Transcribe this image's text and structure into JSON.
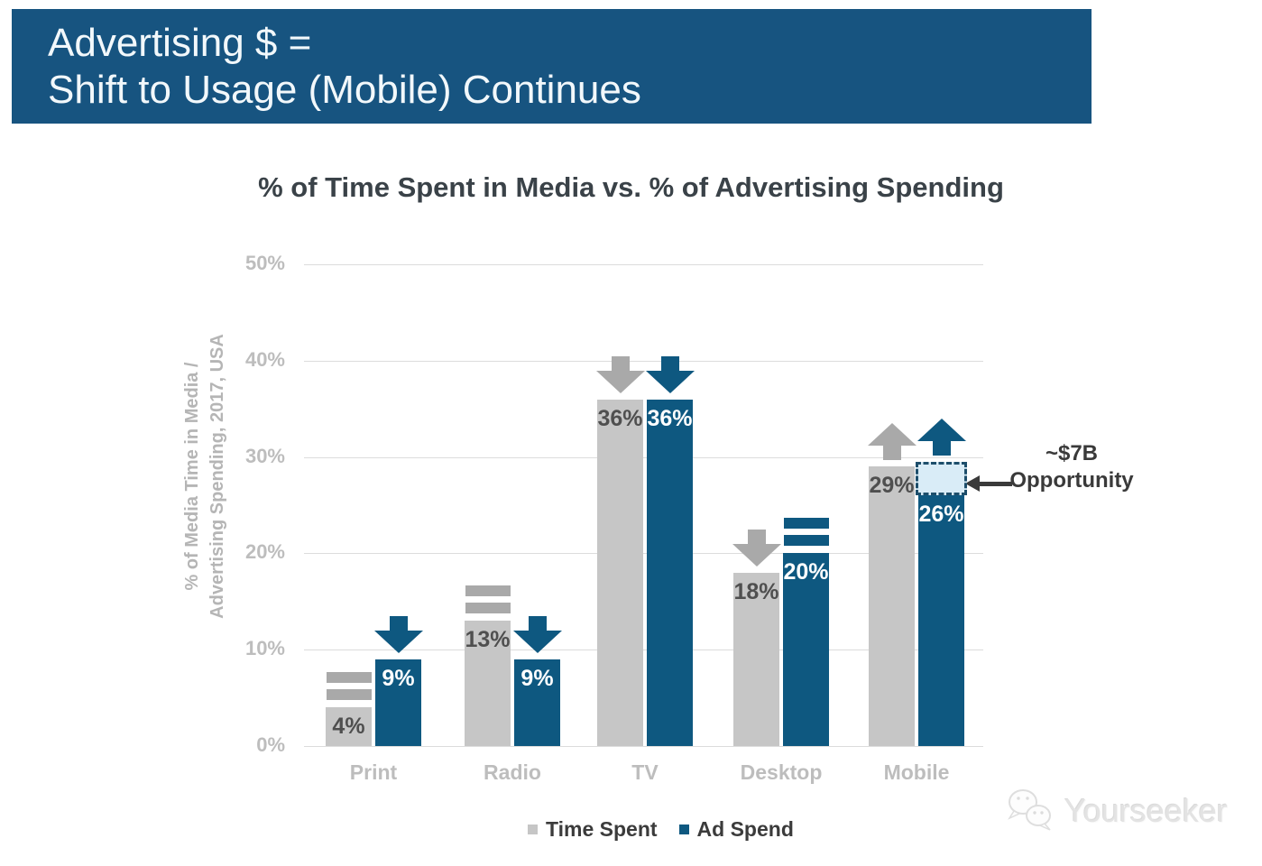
{
  "banner": {
    "line1": "Advertising $ =",
    "line2": "Shift to Usage (Mobile) Continues",
    "bg_color": "#175480"
  },
  "chart_data": {
    "type": "bar",
    "title": "% of Time Spent in Media vs. % of Advertising Spending",
    "ylabel": "% of Media Time in Media / Advertising Spending, 2017, USA",
    "ylabel_lines": [
      "% of Media Time in Media /",
      "Advertising Spending, 2017, USA"
    ],
    "categories": [
      "Print",
      "Radio",
      "TV",
      "Desktop",
      "Mobile"
    ],
    "series": [
      {
        "name": "Time Spent",
        "color": "#C6C6C6",
        "label_color": "#4F4F4F",
        "indicator_color": "#A9A9A9",
        "values": [
          4,
          13,
          36,
          18,
          29
        ],
        "value_labels": [
          "4%",
          "13%",
          "36%",
          "18%",
          "29%"
        ],
        "trend_indicators": [
          "flat",
          "flat",
          "down",
          "down",
          "up"
        ]
      },
      {
        "name": "Ad Spend",
        "color": "#0E5880",
        "label_color": "#FFFFFF",
        "indicator_color": "#0E5880",
        "values": [
          9,
          9,
          36,
          20,
          26
        ],
        "value_labels": [
          "9%",
          "9%",
          "36%",
          "20%",
          "26%"
        ],
        "trend_indicators": [
          "down",
          "down",
          "down",
          "flat",
          "up"
        ]
      }
    ],
    "ylim": [
      0,
      50
    ],
    "yticks": [
      {
        "value": 50,
        "label": "50%"
      },
      {
        "value": 40,
        "label": "40%"
      },
      {
        "value": 30,
        "label": "30%"
      },
      {
        "value": 20,
        "label": "20%"
      },
      {
        "value": 10,
        "label": "10%"
      },
      {
        "value": 0,
        "label": "0%"
      }
    ],
    "grid": true,
    "legend_position": "bottom",
    "annotation": {
      "line1": "~$7B",
      "line2": "Opportunity",
      "category": "Mobile",
      "series": "Ad Spend",
      "gap_from": 26,
      "gap_to": 29.5,
      "box_fill": "#D9ECF7",
      "box_border": "#1D4E6B"
    }
  },
  "legend": {
    "items": [
      {
        "label": "Time Spent",
        "color": "#C6C6C6"
      },
      {
        "label": "Ad Spend",
        "color": "#0E5880"
      }
    ]
  },
  "watermark": {
    "text": "Yourseeker"
  }
}
